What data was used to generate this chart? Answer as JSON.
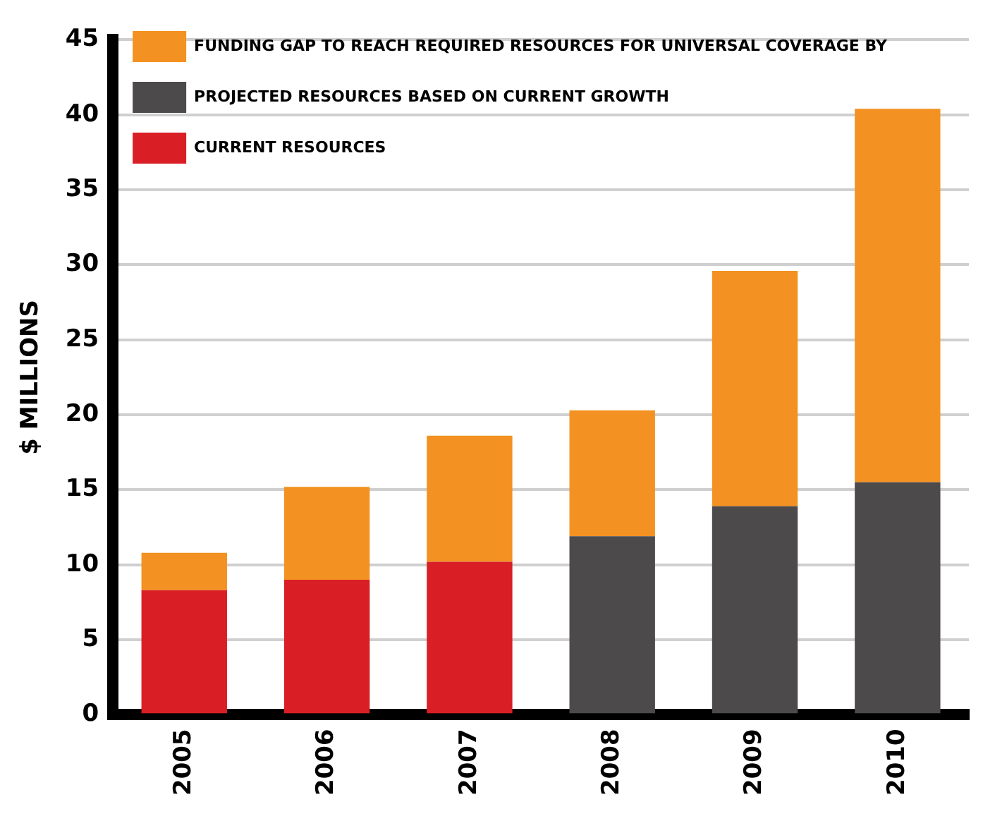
{
  "chart_data": {
    "type": "bar",
    "ylabel": "$ MILLIONS",
    "categories": [
      "2005",
      "2006",
      "2007",
      "2008",
      "2009",
      "2010"
    ],
    "stacked": true,
    "series": [
      {
        "name": "CURRENT RESOURCES",
        "color": "#d91e26",
        "values": [
          8.3,
          9.0,
          10.2,
          null,
          null,
          null
        ]
      },
      {
        "name": "PROJECTED RESOURCES BASED ON CURRENT GROWTH",
        "color": "#4d4a4c",
        "values": [
          null,
          null,
          null,
          11.9,
          13.9,
          15.5
        ]
      },
      {
        "name": "FUNDING GAP TO REACH REQUIRED RESOURCES FOR UNIVERSAL COVERAGE BY",
        "color": "#f39222",
        "values": [
          2.5,
          6.2,
          8.4,
          8.4,
          15.7,
          24.9
        ]
      }
    ],
    "ylim": [
      0,
      45
    ],
    "yticks": [
      0,
      5,
      10,
      15,
      20,
      25,
      30,
      35,
      40,
      45
    ],
    "grid": "y",
    "legend": "top left"
  }
}
